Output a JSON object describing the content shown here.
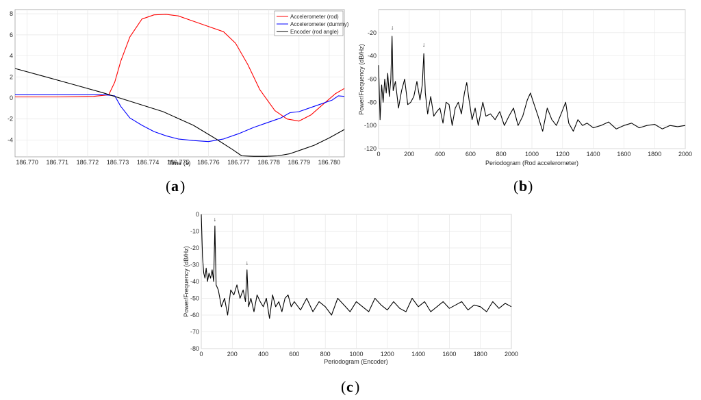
{
  "chart_data": [
    {
      "id": "a",
      "type": "line",
      "caption": "a",
      "xlabel": "Time (s)",
      "ylabel": "",
      "xlim": [
        186.7696,
        186.7805
      ],
      "ylim": [
        -5.6,
        8.4
      ],
      "xticks": [
        186.77,
        186.771,
        186.772,
        186.773,
        186.774,
        186.775,
        186.776,
        186.777,
        186.778,
        186.779,
        186.78
      ],
      "yticks": [
        -4,
        -2,
        0,
        2,
        4,
        6,
        8
      ],
      "grid": true,
      "legend_position": "top-right",
      "series": [
        {
          "name": "Accelerometer (rod)",
          "color": "#ff0000",
          "x": [
            186.7696,
            186.771,
            186.7722,
            186.7727,
            186.7729,
            186.7731,
            186.7734,
            186.7738,
            186.7742,
            186.7746,
            186.775,
            186.7754,
            186.776,
            186.7765,
            186.7769,
            186.7773,
            186.7777,
            186.7782,
            186.7786,
            186.779,
            186.7794,
            186.7798,
            186.7802,
            186.7805
          ],
          "y": [
            0.1,
            0.1,
            0.15,
            0.3,
            1.5,
            3.5,
            5.8,
            7.5,
            7.9,
            7.95,
            7.8,
            7.4,
            6.8,
            6.3,
            5.2,
            3.2,
            0.8,
            -1.2,
            -2.0,
            -2.2,
            -1.6,
            -0.6,
            0.4,
            0.9
          ]
        },
        {
          "name": "Accelerometer (dummy)",
          "color": "#0000ff",
          "x": [
            186.7696,
            186.771,
            186.7726,
            186.7729,
            186.7731,
            186.7734,
            186.7738,
            186.7742,
            186.7746,
            186.775,
            186.7755,
            186.776,
            186.7765,
            186.777,
            186.7775,
            186.778,
            186.7784,
            186.7787,
            186.779,
            186.7794,
            186.7798,
            186.7801,
            186.7803,
            186.7805
          ],
          "y": [
            0.3,
            0.3,
            0.3,
            0.2,
            -0.8,
            -1.9,
            -2.6,
            -3.2,
            -3.6,
            -3.9,
            -4.05,
            -4.15,
            -3.9,
            -3.4,
            -2.8,
            -2.3,
            -1.9,
            -1.4,
            -1.3,
            -0.9,
            -0.5,
            -0.2,
            0.2,
            0.15
          ]
        },
        {
          "name": "Encoder (rod angle)",
          "color": "#000000",
          "x": [
            186.7696,
            186.7705,
            186.7715,
            186.7725,
            186.7735,
            186.7745,
            186.7755,
            186.7762,
            186.7768,
            186.7771,
            186.7775,
            186.7779,
            186.7783,
            186.7787,
            186.7791,
            186.7795,
            186.78,
            186.7805
          ],
          "y": [
            2.8,
            2.1,
            1.3,
            0.5,
            -0.4,
            -1.3,
            -2.6,
            -3.8,
            -4.9,
            -5.5,
            -5.55,
            -5.55,
            -5.5,
            -5.3,
            -4.9,
            -4.5,
            -3.8,
            -3.0
          ]
        }
      ]
    },
    {
      "id": "b",
      "type": "line",
      "caption": "b",
      "xlabel": "Periodogram (Rod accelerometer)",
      "ylabel": "Power/Frequency (dB/Hz)",
      "xlim": [
        0,
        2000
      ],
      "ylim": [
        -120,
        0
      ],
      "xticks": [
        0,
        200,
        400,
        600,
        800,
        1000,
        1200,
        1400,
        1600,
        1800,
        2000
      ],
      "yticks": [
        -120,
        -100,
        -80,
        -60,
        -40,
        -20
      ],
      "grid": true,
      "annotations": [
        {
          "text": "↓",
          "x": 90,
          "y": -17
        },
        {
          "text": "↓",
          "x": 295,
          "y": -32
        }
      ],
      "series": [
        {
          "name": "Rod accelerometer",
          "color": "#000000",
          "x": [
            0,
            10,
            20,
            30,
            40,
            50,
            60,
            70,
            80,
            88,
            95,
            110,
            130,
            150,
            170,
            190,
            210,
            230,
            250,
            270,
            285,
            295,
            305,
            320,
            340,
            360,
            380,
            400,
            420,
            440,
            460,
            480,
            500,
            520,
            540,
            560,
            575,
            590,
            610,
            630,
            650,
            680,
            700,
            730,
            760,
            790,
            820,
            850,
            880,
            910,
            940,
            970,
            990,
            1010,
            1040,
            1070,
            1100,
            1130,
            1160,
            1190,
            1220,
            1240,
            1270,
            1300,
            1330,
            1360,
            1400,
            1450,
            1500,
            1550,
            1600,
            1650,
            1700,
            1750,
            1800,
            1850,
            1900,
            1950,
            2000
          ],
          "y": [
            -48,
            -95,
            -65,
            -80,
            -60,
            -72,
            -55,
            -75,
            -60,
            -23,
            -70,
            -62,
            -85,
            -70,
            -60,
            -82,
            -80,
            -75,
            -62,
            -78,
            -65,
            -38,
            -72,
            -90,
            -75,
            -92,
            -88,
            -85,
            -98,
            -80,
            -82,
            -100,
            -85,
            -80,
            -90,
            -72,
            -63,
            -78,
            -95,
            -85,
            -100,
            -80,
            -92,
            -90,
            -95,
            -88,
            -100,
            -92,
            -85,
            -100,
            -92,
            -78,
            -72,
            -80,
            -92,
            -105,
            -85,
            -95,
            -100,
            -90,
            -80,
            -98,
            -105,
            -95,
            -100,
            -98,
            -102,
            -100,
            -97,
            -103,
            -100,
            -98,
            -102,
            -100,
            -99,
            -103,
            -100,
            -101,
            -100
          ]
        }
      ]
    },
    {
      "id": "c",
      "type": "line",
      "caption": "c",
      "xlabel": "Periodogram (Encoder)",
      "ylabel": "Power/Frequency (dB/Hz)",
      "xlim": [
        0,
        2000
      ],
      "ylim": [
        -80,
        0
      ],
      "xticks": [
        0,
        200,
        400,
        600,
        800,
        1000,
        1200,
        1400,
        1600,
        1800,
        2000
      ],
      "yticks": [
        -80,
        -70,
        -60,
        -50,
        -40,
        -30,
        -20,
        -10,
        0
      ],
      "grid": true,
      "annotations": [
        {
          "text": "↓",
          "x": 88,
          "y": -4
        },
        {
          "text": "↓",
          "x": 295,
          "y": -30
        }
      ],
      "series": [
        {
          "name": "Encoder",
          "color": "#000000",
          "x": [
            0,
            8,
            16,
            24,
            32,
            40,
            50,
            60,
            70,
            80,
            88,
            96,
            110,
            130,
            150,
            170,
            190,
            210,
            230,
            250,
            270,
            285,
            295,
            305,
            320,
            340,
            360,
            380,
            400,
            420,
            440,
            460,
            480,
            500,
            520,
            540,
            560,
            580,
            600,
            640,
            680,
            720,
            760,
            800,
            840,
            880,
            920,
            960,
            1000,
            1040,
            1080,
            1120,
            1160,
            1200,
            1240,
            1280,
            1320,
            1360,
            1400,
            1440,
            1480,
            1520,
            1560,
            1600,
            1640,
            1680,
            1720,
            1760,
            1800,
            1840,
            1880,
            1920,
            1960,
            2000
          ],
          "y": [
            0,
            -25,
            -35,
            -38,
            -32,
            -40,
            -35,
            -38,
            -33,
            -40,
            -7,
            -42,
            -45,
            -55,
            -50,
            -60,
            -45,
            -48,
            -42,
            -50,
            -45,
            -52,
            -33,
            -55,
            -50,
            -58,
            -48,
            -52,
            -55,
            -50,
            -62,
            -48,
            -55,
            -52,
            -58,
            -50,
            -48,
            -55,
            -52,
            -57,
            -50,
            -58,
            -52,
            -55,
            -60,
            -50,
            -54,
            -58,
            -52,
            -55,
            -58,
            -50,
            -54,
            -57,
            -52,
            -56,
            -58,
            -50,
            -55,
            -52,
            -58,
            -55,
            -52,
            -56,
            -54,
            -52,
            -57,
            -54,
            -55,
            -58,
            -52,
            -56,
            -53,
            -55
          ]
        }
      ]
    }
  ]
}
